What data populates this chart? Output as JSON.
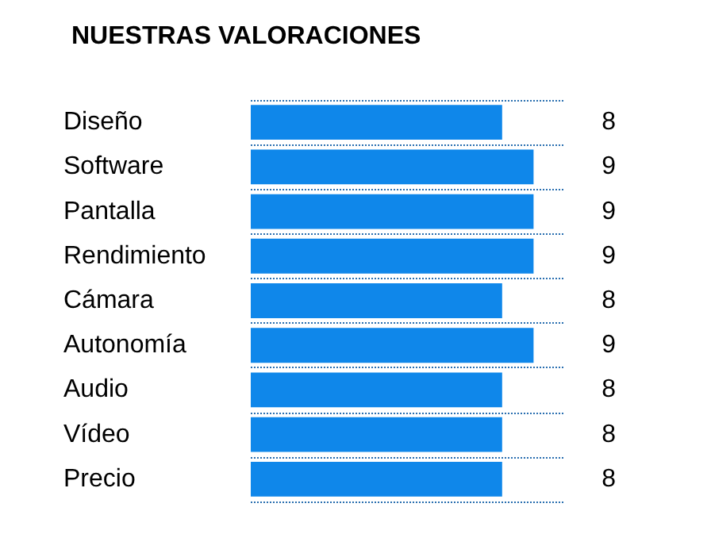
{
  "chart_data": {
    "type": "bar",
    "title": "NUESTRAS VALORACIONES",
    "orientation": "horizontal",
    "categories": [
      "Diseño",
      "Software",
      "Pantalla",
      "Rendimiento",
      "Cámara",
      "Autonomía",
      "Audio",
      "Vídeo",
      "Precio"
    ],
    "values": [
      8,
      9,
      9,
      9,
      8,
      9,
      8,
      8,
      8
    ],
    "color": "#0f87ea",
    "xlim": [
      0,
      10
    ],
    "data_labels": true,
    "grid": "y",
    "tick_labels": "y"
  }
}
